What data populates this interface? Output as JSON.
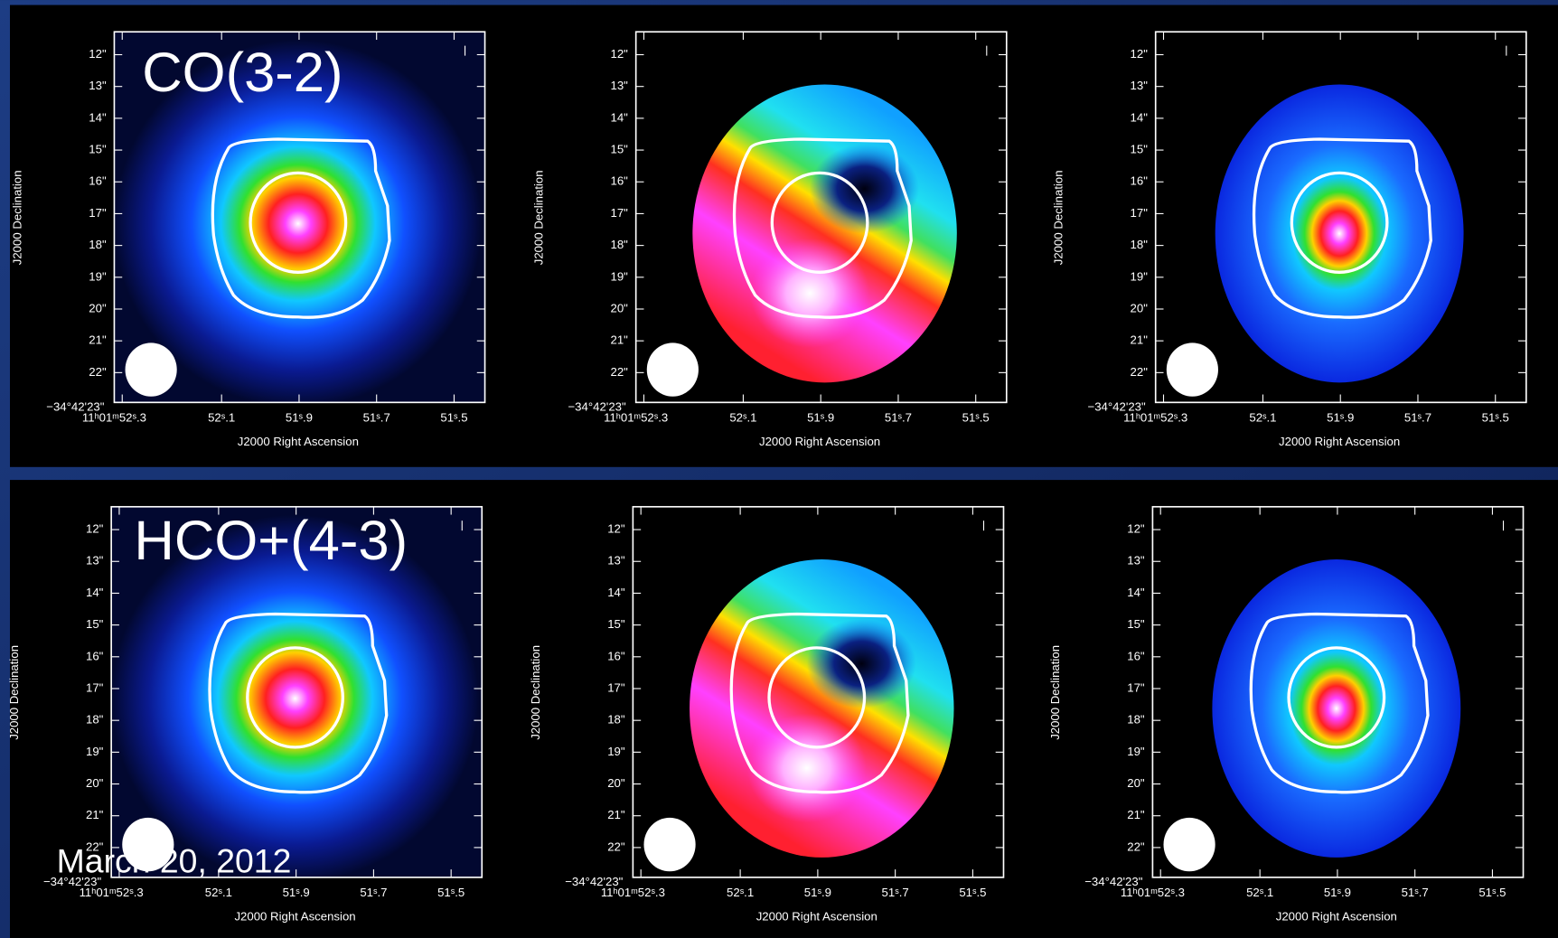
{
  "rows": [
    {
      "label": "CO(3-2)"
    },
    {
      "label": "HCO+(4-3)"
    }
  ],
  "axes": {
    "y_title": "J2000 Declination",
    "x_title": "J2000 Right Ascension",
    "y_ticks": [
      "12\"",
      "13\"",
      "14\"",
      "15\"",
      "16\"",
      "17\"",
      "18\"",
      "19\"",
      "20\"",
      "21\"",
      "22\""
    ],
    "y_origin": "−34°42'23\"",
    "x_ticks": [
      "11ʰ01ᵐ52ˢ.3",
      "52ˢ.1",
      "51ˢ.9",
      "51ˢ.7",
      "51ˢ.5"
    ]
  },
  "footer": "March 20, 2012"
}
